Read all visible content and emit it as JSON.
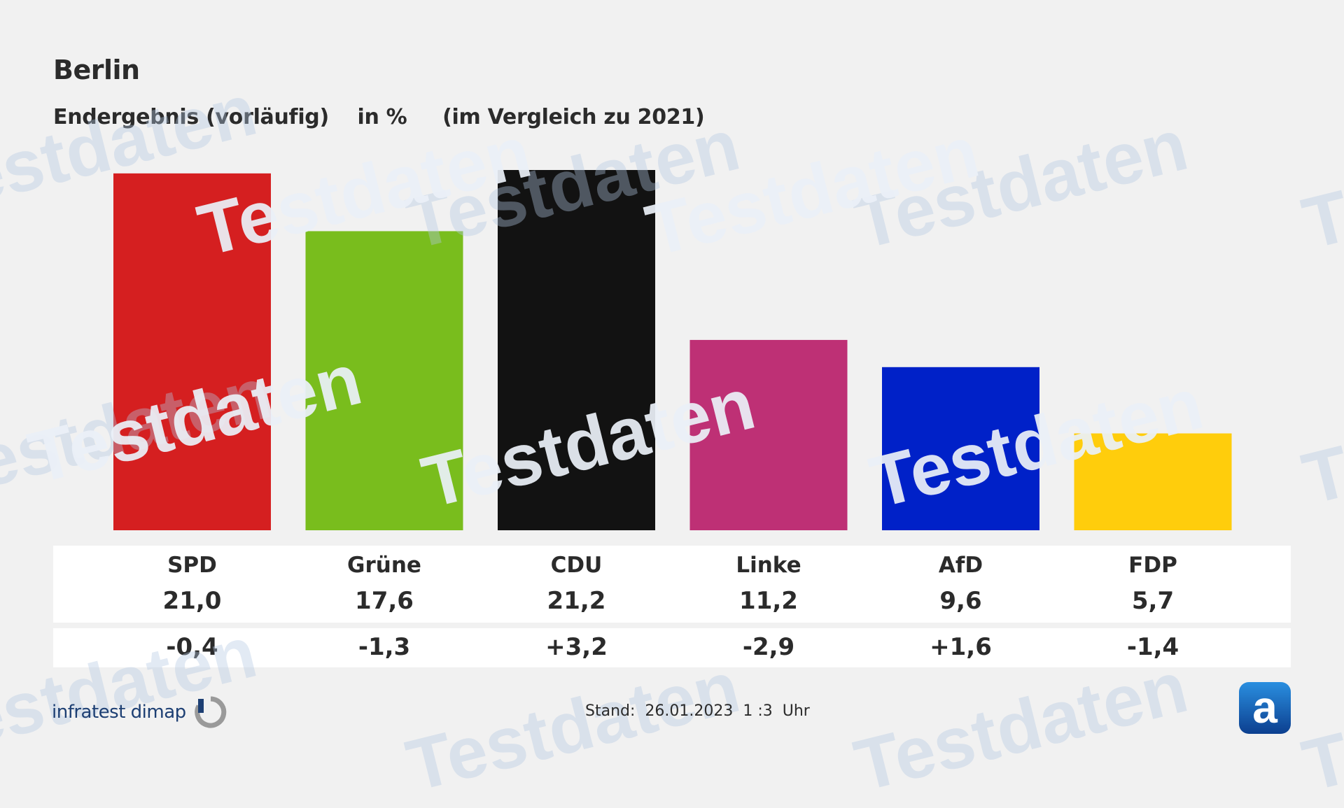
{
  "header": {
    "title": "Berlin",
    "subtitle": "Endergebnis (vorläufig)    in %     (im Vergleich zu 2021)"
  },
  "chart_data": {
    "type": "bar",
    "title": "Berlin",
    "subtitle": "Endergebnis (vorläufig)    in %     (im Vergleich zu 2021)",
    "categories": [
      "SPD",
      "Grüne",
      "CDU",
      "Linke",
      "AfD",
      "FDP"
    ],
    "values": [
      21.0,
      17.6,
      21.2,
      11.2,
      9.6,
      5.7
    ],
    "value_labels": [
      "21,0",
      "17,6",
      "21,2",
      "11,2",
      "9,6",
      "5,7"
    ],
    "changes": [
      -0.4,
      -1.3,
      3.2,
      -2.9,
      1.6,
      -1.4
    ],
    "change_labels": [
      "-0,4",
      "-1,3",
      "+3,2",
      "-2,9",
      "+1,6",
      "-1,4"
    ],
    "colors": [
      "#d51f20",
      "#79bd1d",
      "#121212",
      "#be3075",
      "#0021c8",
      "#ffcd0c"
    ],
    "ylim": [
      0,
      21.2
    ],
    "grid": false,
    "xlabel": "",
    "ylabel": ""
  },
  "footer": {
    "source_logo_text": "infratest dimap",
    "stand": "Stand:  26.01.2023  1 :3  Uhr",
    "brand_icon": "ard-a-logo-icon"
  },
  "watermark": {
    "text": "Testdaten"
  },
  "colors": {
    "background": "#f1f1f1",
    "text": "#2b2b2b",
    "logo_blue": "#1d3f73",
    "watermark_faint": "#b4c8e1"
  }
}
